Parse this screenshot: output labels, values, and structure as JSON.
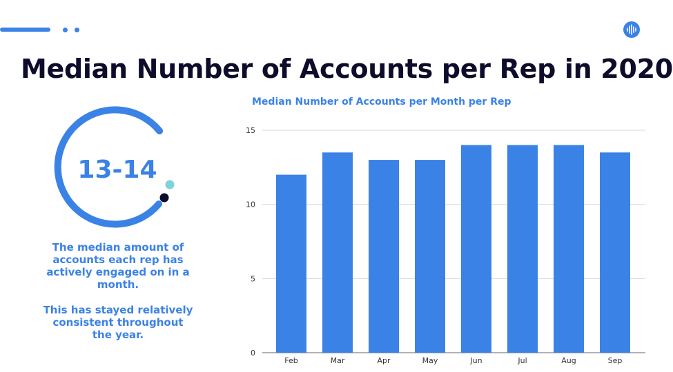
{
  "slide": {
    "title": "Median Number of Accounts per Rep in 2020"
  },
  "stat": {
    "value": "13-14",
    "description_1": "The median amount of accounts each rep has actively engaged on in a month.",
    "description_2": "This has stayed relatively consistent throughout the year."
  },
  "colors": {
    "accent": "#3b82e6",
    "title": "#0d0d2b",
    "teal_dot": "#7fd3d8",
    "dark_dot": "#0d0d2b"
  },
  "icons": [
    "waveform-logo-icon"
  ],
  "chart_data": {
    "type": "bar",
    "title": "Median Number of Accounts per Month per Rep",
    "categories": [
      "Feb",
      "Mar",
      "Apr",
      "May",
      "Jun",
      "Jul",
      "Aug",
      "Sep"
    ],
    "values": [
      12,
      13.5,
      13,
      13,
      14,
      14,
      14,
      13.5
    ],
    "ylim": [
      0,
      15
    ],
    "yticks": [
      0,
      5,
      10,
      15
    ],
    "xlabel": "",
    "ylabel": "",
    "grid": true,
    "bar_color": "#3b82e6"
  }
}
